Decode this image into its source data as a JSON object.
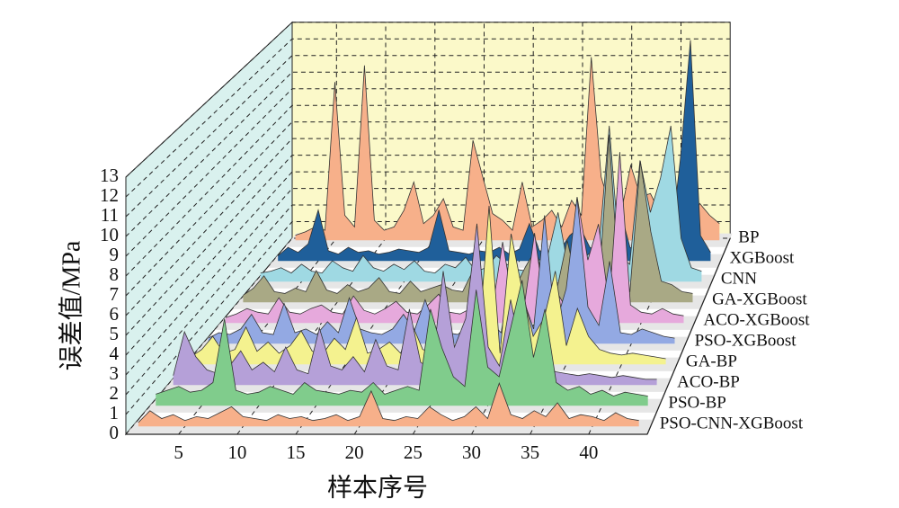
{
  "chart_data": {
    "type": "waterfall3d",
    "x_label": "样本序号",
    "y_label": "误差值/MPa",
    "x": [
      1,
      2,
      3,
      4,
      5,
      6,
      7,
      8,
      9,
      10,
      11,
      12,
      13,
      14,
      15,
      16,
      17,
      18,
      19,
      20,
      21,
      22,
      23,
      24,
      25,
      26,
      27,
      28,
      29,
      30,
      31,
      32,
      33,
      34,
      35,
      36,
      37,
      38,
      39,
      40,
      41,
      42,
      43,
      44
    ],
    "xlim": [
      0.5,
      45
    ],
    "xticks": [
      5,
      10,
      15,
      20,
      25,
      30,
      35,
      40
    ],
    "ylim": [
      0,
      13
    ],
    "yticks": [
      0,
      1,
      2,
      3,
      4,
      5,
      6,
      7,
      8,
      9,
      10,
      11,
      12,
      13
    ],
    "grid": true,
    "series": [
      {
        "name": "BP",
        "color": "#f7b08a",
        "values": [
          0.3,
          0.5,
          0.8,
          0.6,
          9.5,
          1.5,
          0.8,
          10.5,
          1.2,
          0.6,
          0.8,
          1.8,
          3.5,
          1,
          1.5,
          2.5,
          0.8,
          0.6,
          6,
          3.8,
          1.6,
          1.2,
          0.6,
          3.5,
          0.8,
          1.2,
          1.8,
          0.8,
          2.4,
          1.5,
          11,
          3.8,
          1.8,
          1.6,
          4.5,
          2.6,
          2.8,
          1.6,
          1.4,
          3,
          1,
          2.2,
          1.5,
          1
        ]
      },
      {
        "name": "XGBoost",
        "color": "#1f5f9a",
        "values": [
          0.3,
          0.8,
          0.5,
          1,
          3,
          0.6,
          0.4,
          0.8,
          0.5,
          0.6,
          0.4,
          0.5,
          0.7,
          0.6,
          0.5,
          0.8,
          3,
          0.6,
          0.5,
          0.4,
          0.6,
          0.5,
          0.8,
          0.4,
          0.7,
          2.2,
          0.6,
          0.5,
          0.6,
          1.5,
          2,
          0.8,
          0.6,
          1.2,
          3,
          0.8,
          0.6,
          2.5,
          1,
          0.8,
          6,
          13,
          1.5,
          0.5
        ]
      },
      {
        "name": "CNN",
        "color": "#9fd9e3",
        "values": [
          0.5,
          0.6,
          0.8,
          0.5,
          1,
          0.6,
          0.5,
          1.2,
          0.8,
          0.6,
          1.5,
          0.8,
          0.6,
          1,
          0.7,
          1.2,
          0.6,
          0.5,
          1,
          0.8,
          1.4,
          0.6,
          0.8,
          1.5,
          1,
          0.7,
          0.6,
          1.2,
          1.5,
          4,
          0.8,
          1,
          1.6,
          2,
          9,
          1.5,
          1,
          7,
          4,
          6,
          9,
          2.5,
          0.8,
          0.6
        ]
      },
      {
        "name": "GA-XGBoost",
        "color": "#a9a985",
        "values": [
          0.4,
          0.8,
          1.5,
          0.6,
          0.5,
          0.8,
          0.6,
          1.8,
          0.7,
          0.5,
          1,
          0.6,
          0.8,
          1.4,
          0.6,
          0.5,
          1.2,
          0.6,
          0.8,
          1,
          0.7,
          0.6,
          1.8,
          0.8,
          0.6,
          1,
          0.8,
          2,
          3,
          0.6,
          0.7,
          3.5,
          1,
          0.8,
          0.6,
          9.5,
          0.8,
          0.6,
          8,
          4,
          1.2,
          1,
          0.6,
          0.5
        ]
      },
      {
        "name": "ACO-XGBoost",
        "color": "#e6a9dc",
        "values": [
          0.3,
          0.5,
          0.8,
          0.6,
          0.5,
          1.4,
          0.6,
          0.5,
          0.8,
          1,
          0.6,
          0.5,
          1.5,
          0.7,
          0.5,
          0.8,
          1.2,
          0.6,
          0.5,
          1,
          1.6,
          0.6,
          0.5,
          0.8,
          1.8,
          0.6,
          4.5,
          1,
          0.8,
          5,
          0.6,
          1.8,
          0.8,
          7,
          3.5,
          5.5,
          1,
          9.5,
          1,
          0.6,
          0.5,
          0.8,
          0.5,
          0.4
        ]
      },
      {
        "name": "PSO-XGBoost",
        "color": "#93a9e3",
        "values": [
          0.3,
          0.6,
          0.5,
          0.8,
          1.6,
          0.6,
          0.5,
          2.2,
          0.6,
          0.8,
          0.5,
          1.2,
          0.6,
          2.5,
          0.8,
          0.6,
          0.5,
          0.8,
          1.6,
          0.7,
          2.4,
          0.8,
          0.6,
          0.5,
          1,
          3.5,
          1.2,
          0.6,
          4,
          2.5,
          0.8,
          7,
          1,
          3,
          8,
          2,
          1,
          4.5,
          0.6,
          0.5,
          0.8,
          0.6,
          0.4,
          0.3
        ]
      },
      {
        "name": "GA-BP",
        "color": "#f4f28f",
        "values": [
          0.4,
          0.8,
          1.5,
          0.6,
          0.8,
          2,
          0.7,
          1.2,
          0.6,
          1,
          1.8,
          0.7,
          0.6,
          1.4,
          0.8,
          2.5,
          0.6,
          0.8,
          1.2,
          0.6,
          2.2,
          0.8,
          0.6,
          1.8,
          0.7,
          1,
          0.8,
          8.5,
          0.6,
          7,
          4,
          1.5,
          2.5,
          5,
          1,
          3,
          1.5,
          0.8,
          0.6,
          0.5,
          0.6,
          0.5,
          0.4,
          0.3
        ]
      },
      {
        "name": "ACO-BP",
        "color": "#b5a0d8",
        "values": [
          0.5,
          2.8,
          1.5,
          0.8,
          0.6,
          1,
          1.8,
          0.8,
          1.2,
          0.7,
          2,
          0.8,
          0.6,
          3,
          1,
          0.8,
          1.5,
          0.7,
          2.4,
          1,
          0.8,
          4,
          1.2,
          0.8,
          6,
          2,
          3.5,
          8.5,
          2,
          1,
          4.5,
          1.5,
          0.8,
          1,
          0.7,
          0.6,
          0.5,
          0.6,
          0.5,
          0.4,
          0.5,
          0.4,
          0.3,
          0.3
        ]
      },
      {
        "name": "PSO-BP",
        "color": "#80cc8c",
        "values": [
          0.6,
          0.8,
          1,
          0.7,
          0.8,
          1.2,
          4.5,
          0.8,
          0.6,
          0.7,
          1,
          0.8,
          0.6,
          1.2,
          0.8,
          0.7,
          0.6,
          0.8,
          0.7,
          1.2,
          0.6,
          0.8,
          1,
          0.8,
          5,
          3,
          1.5,
          1,
          6,
          2,
          1.5,
          4,
          6.5,
          2.5,
          5,
          1.2,
          0.8,
          1,
          0.6,
          0.8,
          0.5,
          0.7,
          0.6,
          0.5
        ]
      },
      {
        "name": "PSO-CNN-XGBoost",
        "color": "#f7b08a",
        "values": [
          0.2,
          0.8,
          0.4,
          0.6,
          0.3,
          0.5,
          0.4,
          0.7,
          1,
          0.5,
          0.4,
          0.3,
          0.6,
          0.4,
          0.5,
          0.3,
          0.4,
          0.6,
          0.3,
          0.5,
          1.8,
          0.4,
          0.3,
          0.5,
          0.4,
          1,
          0.6,
          0.3,
          0.5,
          1,
          0.4,
          2.2,
          0.6,
          0.4,
          0.8,
          0.5,
          1.2,
          0.4,
          0.6,
          0.5,
          0.3,
          0.7,
          0.4,
          0.3
        ]
      }
    ]
  }
}
